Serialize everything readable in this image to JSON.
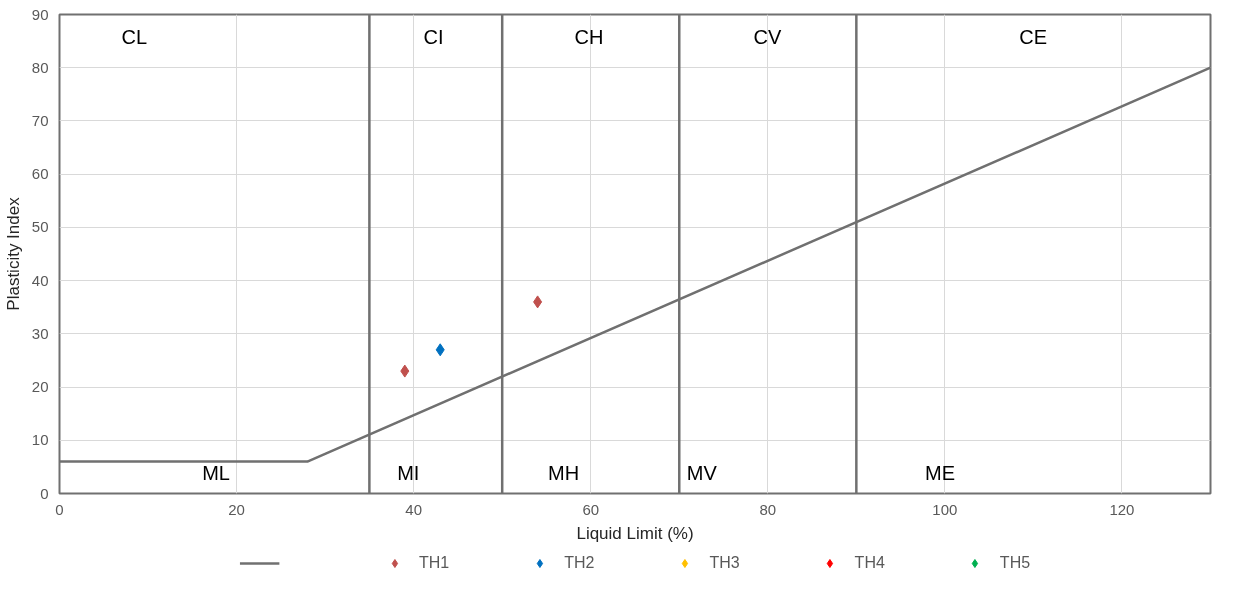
{
  "chart_data": {
    "type": "scatter",
    "xlabel": "Liquid Limit (%)",
    "ylabel": "Plasticity Index",
    "xlim": [
      0,
      130
    ],
    "xticks": [
      0,
      20,
      40,
      60,
      80,
      100,
      120
    ],
    "ylim": [
      0,
      90
    ],
    "yticks": [
      0,
      10,
      20,
      30,
      40,
      50,
      60,
      70,
      80,
      90
    ],
    "grid": true,
    "legend": "bottom",
    "marker": "diamond",
    "series": [
      {
        "type": "line",
        "marker": "none",
        "color": "#707070",
        "x": [
          0,
          28,
          130
        ],
        "values": [
          6,
          6,
          80
        ]
      },
      {
        "name": "TH1",
        "color": "#c0504d",
        "x": [
          39,
          54
        ],
        "values": [
          23,
          36
        ]
      },
      {
        "name": "TH2",
        "color": "#0070c0",
        "x": [
          43
        ],
        "values": [
          27
        ]
      },
      {
        "name": "TH3",
        "color": "#ffc000"
      },
      {
        "name": "TH4",
        "color": "#ff0000"
      },
      {
        "name": "TH5",
        "color": "#00b050"
      }
    ],
    "ref_lines": [
      {
        "axis": "x",
        "value": 35,
        "color": "#707070"
      },
      {
        "axis": "x",
        "value": 50,
        "color": "#707070"
      },
      {
        "axis": "x",
        "value": 70,
        "color": "#707070"
      },
      {
        "axis": "x",
        "value": 90,
        "color": "#707070"
      }
    ],
    "annotations": [
      "CL",
      "CI",
      "CH",
      "CV",
      "CE",
      "ML",
      "MI",
      "MH",
      "MV",
      "ME"
    ]
  }
}
